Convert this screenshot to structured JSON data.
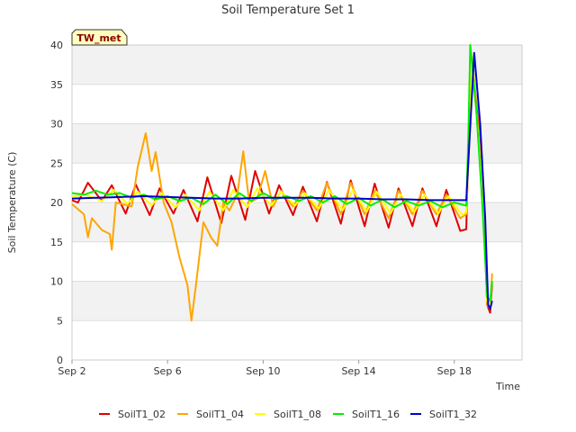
{
  "chart_data": {
    "type": "line",
    "title": "Soil Temperature Set 1",
    "badge": "TW_met",
    "xlabel": "Time",
    "ylabel": "Soil Temperature (C)",
    "xlim": [
      "2024-09-02",
      "2024-09-20"
    ],
    "ylim": [
      0,
      40
    ],
    "xticks": [
      "2024-09-02",
      "2024-09-06",
      "2024-09-10",
      "2024-09-14",
      "2024-09-18"
    ],
    "xtick_labels": [
      "Sep 2",
      "Sep 6",
      "Sep 10",
      "Sep 14",
      "Sep 18"
    ],
    "yticks": [
      0,
      5,
      10,
      15,
      20,
      25,
      30,
      35,
      40
    ],
    "background_bands": true,
    "legend_position": "bottom",
    "series": [
      {
        "name": "SoilT1_02",
        "color": "#e00000",
        "points": [
          [
            "2024-09-02 00:00",
            20.3
          ],
          [
            "2024-09-02 06:00",
            20.0
          ],
          [
            "2024-09-02 16:00",
            22.5
          ],
          [
            "2024-09-03 06:00",
            20.2
          ],
          [
            "2024-09-03 16:00",
            22.2
          ],
          [
            "2024-09-04 06:00",
            18.6
          ],
          [
            "2024-09-04 16:00",
            22.3
          ],
          [
            "2024-09-05 06:00",
            18.4
          ],
          [
            "2024-09-05 16:00",
            21.8
          ],
          [
            "2024-09-06 06:00",
            18.6
          ],
          [
            "2024-09-06 16:00",
            21.6
          ],
          [
            "2024-09-07 06:00",
            17.6
          ],
          [
            "2024-09-07 16:00",
            23.2
          ],
          [
            "2024-09-08 06:00",
            17.4
          ],
          [
            "2024-09-08 16:00",
            23.4
          ],
          [
            "2024-09-09 06:00",
            17.8
          ],
          [
            "2024-09-09 16:00",
            24.0
          ],
          [
            "2024-09-10 06:00",
            18.6
          ],
          [
            "2024-09-10 16:00",
            22.2
          ],
          [
            "2024-09-11 06:00",
            18.4
          ],
          [
            "2024-09-11 16:00",
            22.0
          ],
          [
            "2024-09-12 06:00",
            17.6
          ],
          [
            "2024-09-12 16:00",
            22.6
          ],
          [
            "2024-09-13 06:00",
            17.3
          ],
          [
            "2024-09-13 16:00",
            22.8
          ],
          [
            "2024-09-14 06:00",
            17.0
          ],
          [
            "2024-09-14 16:00",
            22.4
          ],
          [
            "2024-09-15 06:00",
            16.8
          ],
          [
            "2024-09-15 16:00",
            21.8
          ],
          [
            "2024-09-16 06:00",
            17.0
          ],
          [
            "2024-09-16 16:00",
            21.8
          ],
          [
            "2024-09-17 06:00",
            17.0
          ],
          [
            "2024-09-17 16:00",
            21.6
          ],
          [
            "2024-09-18 06:00",
            16.4
          ],
          [
            "2024-09-18 12:00",
            16.6
          ],
          [
            "2024-09-18 14:00",
            27.0
          ],
          [
            "2024-09-18 18:00",
            38.0
          ],
          [
            "2024-09-19 00:00",
            30.0
          ],
          [
            "2024-09-19 06:00",
            17.0
          ],
          [
            "2024-09-19 09:00",
            7.0
          ],
          [
            "2024-09-19 12:00",
            6.0
          ],
          [
            "2024-09-19 14:00",
            9.5
          ]
        ]
      },
      {
        "name": "SoilT1_04",
        "color": "#ffa500",
        "points": [
          [
            "2024-09-02 00:00",
            19.8
          ],
          [
            "2024-09-02 12:00",
            18.5
          ],
          [
            "2024-09-02 16:00",
            15.6
          ],
          [
            "2024-09-02 20:00",
            18.0
          ],
          [
            "2024-09-03 06:00",
            16.5
          ],
          [
            "2024-09-03 14:00",
            16.0
          ],
          [
            "2024-09-03 16:00",
            14.0
          ],
          [
            "2024-09-03 20:00",
            20.0
          ],
          [
            "2024-09-04 12:00",
            19.5
          ],
          [
            "2024-09-04 18:00",
            24.5
          ],
          [
            "2024-09-05 02:00",
            28.8
          ],
          [
            "2024-09-05 08:00",
            24.0
          ],
          [
            "2024-09-05 12:00",
            26.4
          ],
          [
            "2024-09-05 20:00",
            20.0
          ],
          [
            "2024-09-06 04:00",
            17.5
          ],
          [
            "2024-09-06 12:00",
            13.0
          ],
          [
            "2024-09-06 20:00",
            9.5
          ],
          [
            "2024-09-07 00:00",
            5.0
          ],
          [
            "2024-09-07 04:00",
            9.0
          ],
          [
            "2024-09-07 12:00",
            17.5
          ],
          [
            "2024-09-07 20:00",
            15.5
          ],
          [
            "2024-09-08 02:00",
            14.5
          ],
          [
            "2024-09-08 08:00",
            20.0
          ],
          [
            "2024-09-08 14:00",
            19.0
          ],
          [
            "2024-09-08 22:00",
            21.0
          ],
          [
            "2024-09-09 04:00",
            26.5
          ],
          [
            "2024-09-09 10:00",
            20.0
          ],
          [
            "2024-09-09 18:00",
            20.5
          ],
          [
            "2024-09-10 02:00",
            24.0
          ],
          [
            "2024-09-10 10:00",
            19.5
          ],
          [
            "2024-09-10 18:00",
            21.5
          ],
          [
            "2024-09-11 06:00",
            19.5
          ],
          [
            "2024-09-11 16:00",
            21.5
          ],
          [
            "2024-09-12 06:00",
            19.0
          ],
          [
            "2024-09-12 16:00",
            22.5
          ],
          [
            "2024-09-13 06:00",
            18.5
          ],
          [
            "2024-09-13 16:00",
            22.5
          ],
          [
            "2024-09-14 06:00",
            18.5
          ],
          [
            "2024-09-14 16:00",
            21.5
          ],
          [
            "2024-09-15 06:00",
            18.0
          ],
          [
            "2024-09-15 16:00",
            21.5
          ],
          [
            "2024-09-16 06:00",
            18.5
          ],
          [
            "2024-09-16 16:00",
            21.5
          ],
          [
            "2024-09-17 06:00",
            18.5
          ],
          [
            "2024-09-17 16:00",
            21.0
          ],
          [
            "2024-09-18 06:00",
            18.0
          ],
          [
            "2024-09-18 12:00",
            18.5
          ],
          [
            "2024-09-18 14:00",
            25.0
          ],
          [
            "2024-09-18 18:00",
            37.0
          ],
          [
            "2024-09-19 00:00",
            29.0
          ],
          [
            "2024-09-19 06:00",
            17.5
          ],
          [
            "2024-09-19 09:00",
            7.0
          ],
          [
            "2024-09-19 12:00",
            6.5
          ],
          [
            "2024-09-19 14:00",
            11.0
          ]
        ]
      },
      {
        "name": "SoilT1_08",
        "color": "#ffff00",
        "points": [
          [
            "2024-09-02 00:00",
            20.8
          ],
          [
            "2024-09-02 14:00",
            21.0
          ],
          [
            "2024-09-03 06:00",
            20.2
          ],
          [
            "2024-09-03 18:00",
            21.6
          ],
          [
            "2024-09-04 08:00",
            19.8
          ],
          [
            "2024-09-04 18:00",
            21.4
          ],
          [
            "2024-09-05 08:00",
            19.6
          ],
          [
            "2024-09-05 18:00",
            21.2
          ],
          [
            "2024-09-06 08:00",
            19.4
          ],
          [
            "2024-09-06 18:00",
            21.0
          ],
          [
            "2024-09-07 08:00",
            19.0
          ],
          [
            "2024-09-07 18:00",
            21.4
          ],
          [
            "2024-09-08 08:00",
            19.0
          ],
          [
            "2024-09-08 18:00",
            21.6
          ],
          [
            "2024-09-09 08:00",
            19.4
          ],
          [
            "2024-09-09 18:00",
            21.8
          ],
          [
            "2024-09-10 08:00",
            19.6
          ],
          [
            "2024-09-10 18:00",
            21.4
          ],
          [
            "2024-09-11 08:00",
            19.6
          ],
          [
            "2024-09-11 18:00",
            21.2
          ],
          [
            "2024-09-12 08:00",
            19.2
          ],
          [
            "2024-09-12 18:00",
            21.6
          ],
          [
            "2024-09-13 08:00",
            19.0
          ],
          [
            "2024-09-13 18:00",
            21.6
          ],
          [
            "2024-09-14 08:00",
            18.8
          ],
          [
            "2024-09-14 18:00",
            21.4
          ],
          [
            "2024-09-15 08:00",
            18.6
          ],
          [
            "2024-09-15 18:00",
            21.0
          ],
          [
            "2024-09-16 08:00",
            18.8
          ],
          [
            "2024-09-16 18:00",
            21.0
          ],
          [
            "2024-09-17 08:00",
            18.6
          ],
          [
            "2024-09-17 18:00",
            20.8
          ],
          [
            "2024-09-18 08:00",
            18.4
          ],
          [
            "2024-09-18 12:00",
            18.8
          ],
          [
            "2024-09-18 14:00",
            26.0
          ],
          [
            "2024-09-18 18:00",
            38.5
          ],
          [
            "2024-09-19 00:00",
            29.0
          ],
          [
            "2024-09-19 06:00",
            17.0
          ],
          [
            "2024-09-19 09:00",
            7.5
          ],
          [
            "2024-09-19 12:00",
            7.0
          ],
          [
            "2024-09-19 14:00",
            10.0
          ]
        ]
      },
      {
        "name": "SoilT1_16",
        "color": "#00ee00",
        "points": [
          [
            "2024-09-02 00:00",
            21.2
          ],
          [
            "2024-09-02 12:00",
            21.0
          ],
          [
            "2024-09-03 00:00",
            21.5
          ],
          [
            "2024-09-03 12:00",
            21.0
          ],
          [
            "2024-09-04 00:00",
            21.2
          ],
          [
            "2024-09-04 12:00",
            20.6
          ],
          [
            "2024-09-05 00:00",
            21.0
          ],
          [
            "2024-09-05 12:00",
            20.4
          ],
          [
            "2024-09-06 00:00",
            20.8
          ],
          [
            "2024-09-06 12:00",
            20.2
          ],
          [
            "2024-09-07 00:00",
            20.6
          ],
          [
            "2024-09-07 12:00",
            19.8
          ],
          [
            "2024-09-08 00:00",
            21.0
          ],
          [
            "2024-09-08 12:00",
            19.8
          ],
          [
            "2024-09-09 00:00",
            21.2
          ],
          [
            "2024-09-09 12:00",
            20.2
          ],
          [
            "2024-09-10 00:00",
            21.2
          ],
          [
            "2024-09-10 12:00",
            20.4
          ],
          [
            "2024-09-11 00:00",
            20.8
          ],
          [
            "2024-09-11 12:00",
            20.2
          ],
          [
            "2024-09-12 00:00",
            20.8
          ],
          [
            "2024-09-12 12:00",
            20.0
          ],
          [
            "2024-09-13 00:00",
            20.8
          ],
          [
            "2024-09-13 12:00",
            19.8
          ],
          [
            "2024-09-14 00:00",
            20.6
          ],
          [
            "2024-09-14 12:00",
            19.6
          ],
          [
            "2024-09-15 00:00",
            20.4
          ],
          [
            "2024-09-15 12:00",
            19.4
          ],
          [
            "2024-09-16 00:00",
            20.2
          ],
          [
            "2024-09-16 12:00",
            19.6
          ],
          [
            "2024-09-17 00:00",
            20.2
          ],
          [
            "2024-09-17 12:00",
            19.4
          ],
          [
            "2024-09-18 00:00",
            20.0
          ],
          [
            "2024-09-18 12:00",
            19.6
          ],
          [
            "2024-09-18 14:00",
            28.0
          ],
          [
            "2024-09-18 16:00",
            40.0
          ],
          [
            "2024-09-18 22:00",
            32.0
          ],
          [
            "2024-09-19 04:00",
            20.0
          ],
          [
            "2024-09-19 09:00",
            8.0
          ],
          [
            "2024-09-19 12:00",
            7.5
          ],
          [
            "2024-09-19 14:00",
            10.0
          ]
        ]
      },
      {
        "name": "SoilT1_32",
        "color": "#0000cc",
        "points": [
          [
            "2024-09-02 00:00",
            20.5
          ],
          [
            "2024-09-03 00:00",
            20.6
          ],
          [
            "2024-09-04 00:00",
            20.7
          ],
          [
            "2024-09-05 00:00",
            20.8
          ],
          [
            "2024-09-06 00:00",
            20.7
          ],
          [
            "2024-09-07 00:00",
            20.6
          ],
          [
            "2024-09-08 00:00",
            20.5
          ],
          [
            "2024-09-09 00:00",
            20.5
          ],
          [
            "2024-09-10 00:00",
            20.6
          ],
          [
            "2024-09-11 00:00",
            20.6
          ],
          [
            "2024-09-12 00:00",
            20.6
          ],
          [
            "2024-09-13 00:00",
            20.5
          ],
          [
            "2024-09-14 00:00",
            20.5
          ],
          [
            "2024-09-15 00:00",
            20.4
          ],
          [
            "2024-09-16 00:00",
            20.4
          ],
          [
            "2024-09-17 00:00",
            20.3
          ],
          [
            "2024-09-18 00:00",
            20.3
          ],
          [
            "2024-09-18 12:00",
            20.3
          ],
          [
            "2024-09-18 14:00",
            25.0
          ],
          [
            "2024-09-18 20:00",
            39.0
          ],
          [
            "2024-09-19 02:00",
            30.0
          ],
          [
            "2024-09-19 07:00",
            18.0
          ],
          [
            "2024-09-19 10:00",
            7.0
          ],
          [
            "2024-09-19 12:00",
            6.5
          ],
          [
            "2024-09-19 14:00",
            7.5
          ]
        ]
      }
    ]
  }
}
